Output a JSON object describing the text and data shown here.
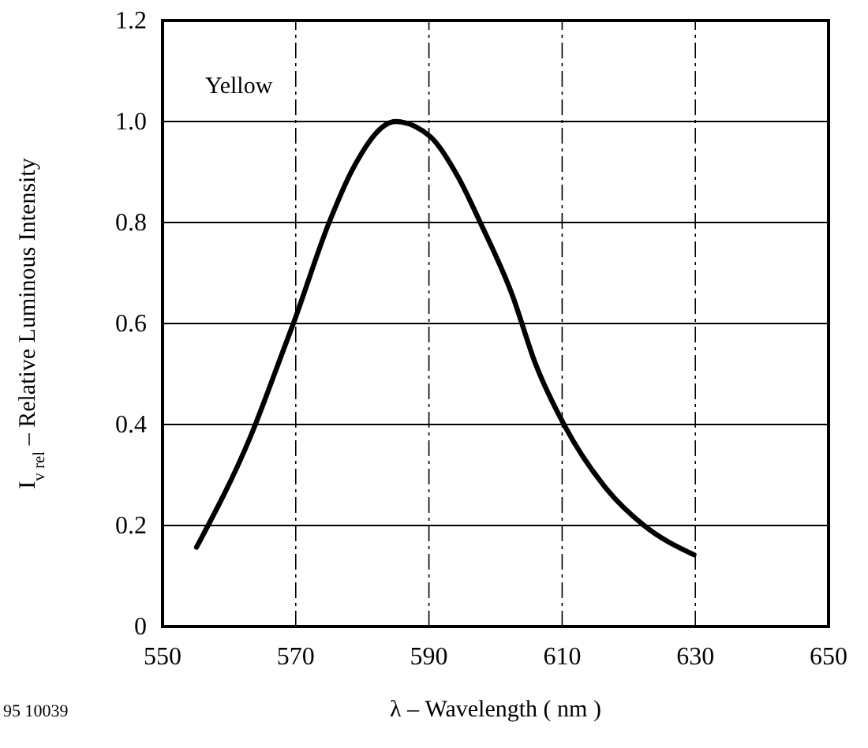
{
  "chart_data": {
    "type": "line",
    "xlabel": "λ – Wavelength ( nm )",
    "ylabel": "I$_{v rel}$  – Relative Luminous Intensity",
    "annotations": [
      "Yellow",
      "95 10039"
    ],
    "x": [
      555.1,
      563.2,
      568.3,
      569.5,
      575.1,
      578.6,
      585,
      590.2,
      594.5,
      597.6,
      602.5,
      606,
      610.4,
      616.7,
      622.3,
      629.8
    ],
    "series": [
      {
        "color": "#000000",
        "values": [
          0.157,
          0.376,
          0.553,
          0.595,
          0.803,
          0.907,
          1.0,
          0.97,
          0.887,
          0.803,
          0.657,
          0.52,
          0.397,
          0.272,
          0.2,
          0.142
        ]
      }
    ],
    "xlim": [
      550,
      650
    ],
    "xticks": [
      550,
      570,
      590,
      610,
      630,
      650
    ],
    "ylim": [
      0,
      1.2
    ],
    "yticks": [
      {
        "value": 0,
        "label": "0"
      },
      {
        "value": 0.2,
        "label": "0.2"
      },
      {
        "value": 0.4,
        "label": "0.4"
      },
      {
        "value": 0.6,
        "label": "0.6"
      },
      {
        "value": 0.8,
        "label": "0.8"
      },
      {
        "value": 1.0,
        "label": "1.0"
      },
      {
        "value": 1.2,
        "label": "1.2"
      }
    ],
    "grid": true,
    "marker": "none",
    "line_style": "solid"
  }
}
